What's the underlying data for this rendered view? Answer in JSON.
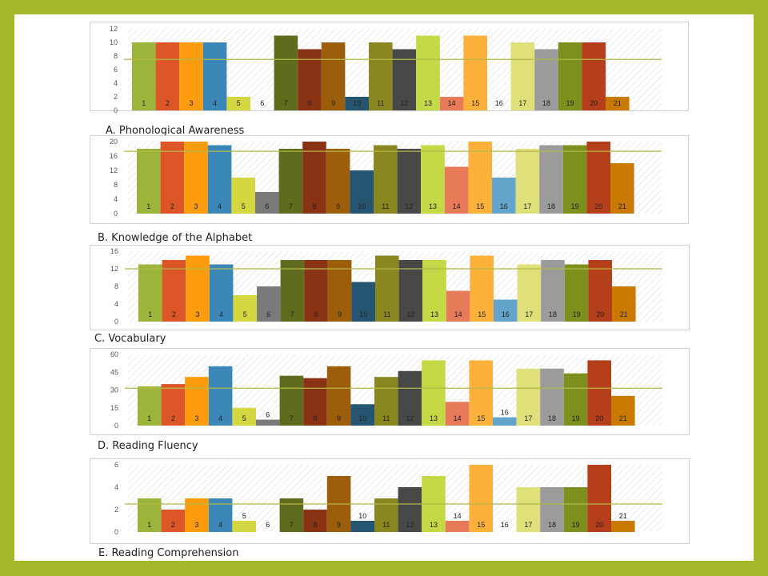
{
  "colors": [
    "#9bb53a",
    "#dd5627",
    "#fd9c0f",
    "#3b87b8",
    "#d5d740",
    "#7a7a7a",
    "#5f6b1d",
    "#8a3214",
    "#9d5e0b",
    "#255571",
    "#8a8620",
    "#484848",
    "#c5d846",
    "#e77a58",
    "#fdb13b",
    "#63a5ca",
    "#dfe07a",
    "#9b9b9b",
    "#7d901e",
    "#b53e1b",
    "#ca7a03"
  ],
  "avg_line_color": "#b3b847",
  "bar_labels": [
    "1",
    "2",
    "3",
    "4",
    "5",
    "6",
    "7",
    "8",
    "9",
    "10",
    "11",
    "12",
    "13",
    "14",
    "15",
    "16",
    "17",
    "18",
    "19",
    "20",
    "21"
  ],
  "chart_data": [
    {
      "type": "bar",
      "title": "A. Phonological Awareness",
      "ylim": [
        0,
        12
      ],
      "yticks": [
        0,
        2,
        4,
        6,
        8,
        10,
        12
      ],
      "values": [
        10,
        10,
        10,
        10,
        2,
        0,
        11,
        9,
        10,
        2,
        10,
        9,
        11,
        2,
        11,
        0,
        10,
        9,
        10,
        10,
        2
      ],
      "reference_line": 7.5,
      "grid": false
    },
    {
      "type": "bar",
      "title": "B. Knowledge of the Alphabet",
      "ylim": [
        0,
        20
      ],
      "yticks": [
        0,
        4,
        8,
        12,
        16,
        20
      ],
      "values": [
        18,
        20,
        20,
        19,
        10,
        6,
        18,
        20,
        18,
        12,
        19,
        18,
        19,
        13,
        20,
        10,
        18,
        19,
        19,
        20,
        14
      ],
      "reference_line": 17.3,
      "grid": false
    },
    {
      "type": "bar",
      "title": "C. Vocabulary",
      "ylim": [
        0,
        16
      ],
      "yticks": [
        0,
        4,
        8,
        12,
        16
      ],
      "values": [
        13,
        14,
        15,
        13,
        6,
        8,
        14,
        14,
        14,
        9,
        15,
        14,
        14,
        7,
        15,
        5,
        13,
        14,
        13,
        14,
        8
      ],
      "reference_line": 12,
      "grid": false
    },
    {
      "type": "bar",
      "title": "D. Reading Fluency",
      "ylim": [
        0,
        60
      ],
      "yticks": [
        0,
        15,
        30,
        45,
        60
      ],
      "values": [
        33,
        35,
        41,
        50,
        15,
        5,
        42,
        40,
        50,
        18,
        41,
        46,
        55,
        20,
        55,
        7,
        48,
        48,
        44,
        55,
        25
      ],
      "reference_line": 31.5,
      "grid": false
    },
    {
      "type": "bar",
      "title": "E. Reading Comprehension",
      "ylim": [
        0,
        6
      ],
      "yticks": [
        0,
        2,
        4,
        6
      ],
      "values": [
        3,
        2,
        3,
        3,
        1,
        0,
        3,
        2,
        5,
        1,
        3,
        4,
        5,
        1,
        6,
        0,
        4,
        4,
        4,
        6,
        1
      ],
      "reference_line": 2.5,
      "grid": false
    }
  ]
}
